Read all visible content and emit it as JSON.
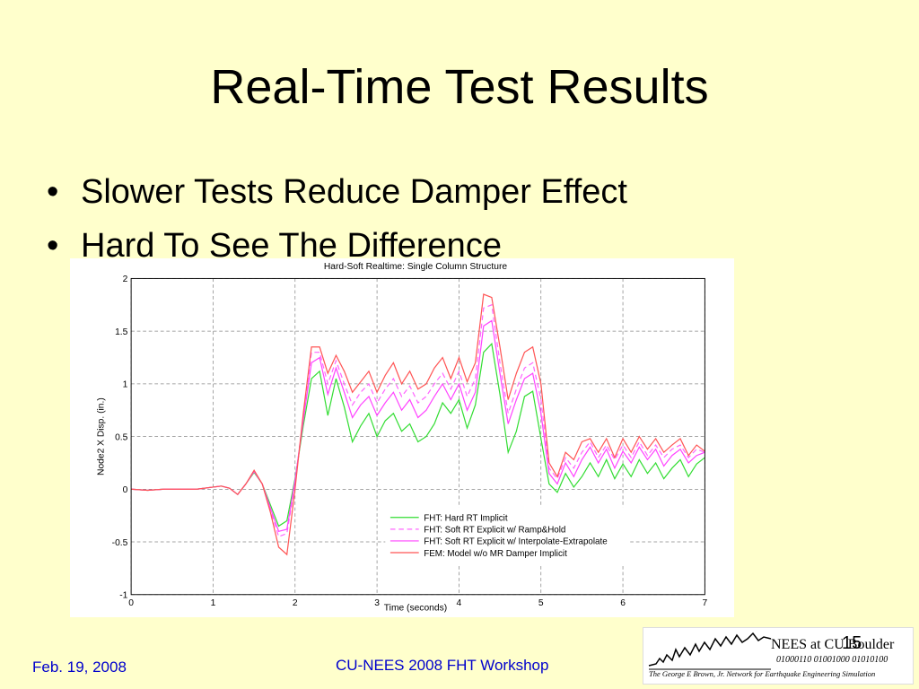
{
  "slide": {
    "title": "Real-Time Test Results",
    "bullets": [
      "Slower Tests Reduce Damper Effect",
      "Hard To See The Difference"
    ],
    "bullet_glyph": "•",
    "footer_date": "Feb. 19,  2008",
    "footer_center": "CU-NEES 2008 FHT Workshop",
    "page_number": "15",
    "background_color": "#ffffcc",
    "footer_color": "#0000cc"
  },
  "logo": {
    "name": "NEES at CU Boulder",
    "binary": "01000110  01001000  01010100",
    "subtitle": "The George E Brown, Jr. Network for Earthquake Engineering Simulation"
  },
  "chart_data": {
    "type": "line",
    "title": "Hard-Soft Realtime: Single Column Structure",
    "xlabel": "Time (seconds)",
    "ylabel": "Node2 X Disp. (in.)",
    "xlim": [
      0,
      7
    ],
    "ylim": [
      -1,
      2
    ],
    "xticks": [
      "0",
      "1",
      "2",
      "3",
      "4",
      "5",
      "6",
      "7"
    ],
    "yticks": [
      "-1",
      "-0.5",
      "0",
      "0.5",
      "1",
      "1.5",
      "2"
    ],
    "grid": true,
    "legend_position": "lower-right",
    "series": [
      {
        "name": "FHT: Hard RT Implicit",
        "color": "#33dd33",
        "dash": "solid",
        "x": [
          0,
          0.2,
          0.4,
          0.6,
          0.8,
          1.0,
          1.1,
          1.2,
          1.3,
          1.4,
          1.5,
          1.6,
          1.7,
          1.8,
          1.9,
          2.0,
          2.1,
          2.2,
          2.3,
          2.4,
          2.5,
          2.6,
          2.7,
          2.8,
          2.9,
          3.0,
          3.1,
          3.2,
          3.3,
          3.4,
          3.5,
          3.6,
          3.7,
          3.8,
          3.9,
          4.0,
          4.1,
          4.2,
          4.3,
          4.4,
          4.5,
          4.6,
          4.7,
          4.8,
          4.9,
          5.0,
          5.1,
          5.2,
          5.3,
          5.4,
          5.5,
          5.6,
          5.7,
          5.8,
          5.9,
          6.0,
          6.1,
          6.2,
          6.3,
          6.4,
          6.5,
          6.6,
          6.7,
          6.8,
          6.9,
          7.0
        ],
        "y": [
          0,
          -0.01,
          0,
          0,
          0,
          0.02,
          0.03,
          0.01,
          -0.05,
          0.05,
          0.16,
          0.05,
          -0.15,
          -0.35,
          -0.3,
          0.1,
          0.6,
          1.05,
          1.12,
          0.7,
          1.05,
          0.78,
          0.45,
          0.6,
          0.72,
          0.5,
          0.65,
          0.72,
          0.55,
          0.62,
          0.45,
          0.5,
          0.62,
          0.82,
          0.72,
          0.85,
          0.58,
          0.8,
          1.3,
          1.38,
          0.9,
          0.35,
          0.55,
          0.88,
          0.93,
          0.48,
          0.05,
          -0.03,
          0.15,
          0.02,
          0.12,
          0.25,
          0.12,
          0.28,
          0.1,
          0.24,
          0.12,
          0.28,
          0.15,
          0.25,
          0.1,
          0.2,
          0.28,
          0.12,
          0.24,
          0.3
        ]
      },
      {
        "name": "FHT: Soft RT Explicit w/ Ramp&Hold",
        "color": "#ff66ff",
        "dash": "dashed",
        "x": [
          0,
          0.2,
          0.4,
          0.6,
          0.8,
          1.0,
          1.1,
          1.2,
          1.3,
          1.4,
          1.5,
          1.6,
          1.7,
          1.8,
          1.9,
          2.0,
          2.1,
          2.2,
          2.3,
          2.4,
          2.5,
          2.6,
          2.7,
          2.8,
          2.9,
          3.0,
          3.1,
          3.2,
          3.3,
          3.4,
          3.5,
          3.6,
          3.7,
          3.8,
          3.9,
          4.0,
          4.1,
          4.2,
          4.3,
          4.4,
          4.5,
          4.6,
          4.7,
          4.8,
          4.9,
          5.0,
          5.1,
          5.2,
          5.3,
          5.4,
          5.5,
          5.6,
          5.7,
          5.8,
          5.9,
          6.0,
          6.1,
          6.2,
          6.3,
          6.4,
          6.5,
          6.6,
          6.7,
          6.8,
          6.9,
          7.0
        ],
        "y": [
          0,
          -0.01,
          0,
          0,
          0,
          0.02,
          0.03,
          0.01,
          -0.05,
          0.05,
          0.17,
          0.05,
          -0.2,
          -0.45,
          -0.42,
          0.05,
          0.7,
          1.3,
          1.3,
          1.0,
          1.22,
          1.0,
          0.8,
          0.92,
          1.0,
          0.82,
          0.95,
          1.05,
          0.88,
          0.98,
          0.82,
          0.88,
          1.0,
          1.1,
          0.95,
          1.12,
          0.88,
          1.05,
          1.72,
          1.75,
          1.2,
          0.72,
          0.95,
          1.15,
          1.2,
          0.85,
          0.2,
          0.1,
          0.3,
          0.2,
          0.35,
          0.45,
          0.3,
          0.42,
          0.28,
          0.42,
          0.3,
          0.45,
          0.32,
          0.42,
          0.3,
          0.38,
          0.42,
          0.3,
          0.38,
          0.35
        ]
      },
      {
        "name": "FHT: Soft RT Explicit w/ Interpolate-Extrapolate",
        "color": "#ff44ff",
        "dash": "solid",
        "x": [
          0,
          0.2,
          0.4,
          0.6,
          0.8,
          1.0,
          1.1,
          1.2,
          1.3,
          1.4,
          1.5,
          1.6,
          1.7,
          1.8,
          1.9,
          2.0,
          2.1,
          2.2,
          2.3,
          2.4,
          2.5,
          2.6,
          2.7,
          2.8,
          2.9,
          3.0,
          3.1,
          3.2,
          3.3,
          3.4,
          3.5,
          3.6,
          3.7,
          3.8,
          3.9,
          4.0,
          4.1,
          4.2,
          4.3,
          4.4,
          4.5,
          4.6,
          4.7,
          4.8,
          4.9,
          5.0,
          5.1,
          5.2,
          5.3,
          5.4,
          5.5,
          5.6,
          5.7,
          5.8,
          5.9,
          6.0,
          6.1,
          6.2,
          6.3,
          6.4,
          6.5,
          6.6,
          6.7,
          6.8,
          6.9,
          7.0
        ],
        "y": [
          0,
          -0.01,
          0,
          0,
          0,
          0.02,
          0.03,
          0.01,
          -0.05,
          0.05,
          0.17,
          0.05,
          -0.18,
          -0.4,
          -0.38,
          0.08,
          0.65,
          1.2,
          1.25,
          0.9,
          1.15,
          0.92,
          0.68,
          0.8,
          0.88,
          0.7,
          0.82,
          0.92,
          0.75,
          0.85,
          0.68,
          0.75,
          0.88,
          1.0,
          0.85,
          1.0,
          0.75,
          0.92,
          1.55,
          1.6,
          1.1,
          0.62,
          0.85,
          1.05,
          1.1,
          0.72,
          0.15,
          0.05,
          0.25,
          0.12,
          0.28,
          0.4,
          0.25,
          0.38,
          0.2,
          0.36,
          0.25,
          0.4,
          0.28,
          0.38,
          0.22,
          0.32,
          0.38,
          0.25,
          0.32,
          0.35
        ]
      },
      {
        "name": "FEM: Model w/o MR Damper Implicit",
        "color": "#ff5555",
        "dash": "solid",
        "x": [
          0,
          0.2,
          0.4,
          0.6,
          0.8,
          1.0,
          1.1,
          1.2,
          1.3,
          1.4,
          1.5,
          1.6,
          1.7,
          1.8,
          1.9,
          2.0,
          2.1,
          2.2,
          2.3,
          2.4,
          2.5,
          2.6,
          2.7,
          2.8,
          2.9,
          3.0,
          3.1,
          3.2,
          3.3,
          3.4,
          3.5,
          3.6,
          3.7,
          3.8,
          3.9,
          4.0,
          4.1,
          4.2,
          4.3,
          4.4,
          4.5,
          4.6,
          4.7,
          4.8,
          4.9,
          5.0,
          5.1,
          5.2,
          5.3,
          5.4,
          5.5,
          5.6,
          5.7,
          5.8,
          5.9,
          6.0,
          6.1,
          6.2,
          6.3,
          6.4,
          6.5,
          6.6,
          6.7,
          6.8,
          6.9,
          7.0
        ],
        "y": [
          0,
          -0.01,
          0,
          0,
          0,
          0.02,
          0.03,
          0.01,
          -0.05,
          0.05,
          0.18,
          0.05,
          -0.22,
          -0.55,
          -0.62,
          0.0,
          0.72,
          1.35,
          1.35,
          1.1,
          1.27,
          1.12,
          0.92,
          1.02,
          1.12,
          0.92,
          1.08,
          1.2,
          1.0,
          1.12,
          0.95,
          1.0,
          1.15,
          1.25,
          1.05,
          1.25,
          1.02,
          1.2,
          1.85,
          1.82,
          1.35,
          0.85,
          1.1,
          1.3,
          1.35,
          1.0,
          0.25,
          0.12,
          0.35,
          0.28,
          0.45,
          0.48,
          0.35,
          0.48,
          0.3,
          0.48,
          0.35,
          0.5,
          0.38,
          0.48,
          0.35,
          0.42,
          0.48,
          0.32,
          0.42,
          0.36
        ]
      }
    ]
  }
}
